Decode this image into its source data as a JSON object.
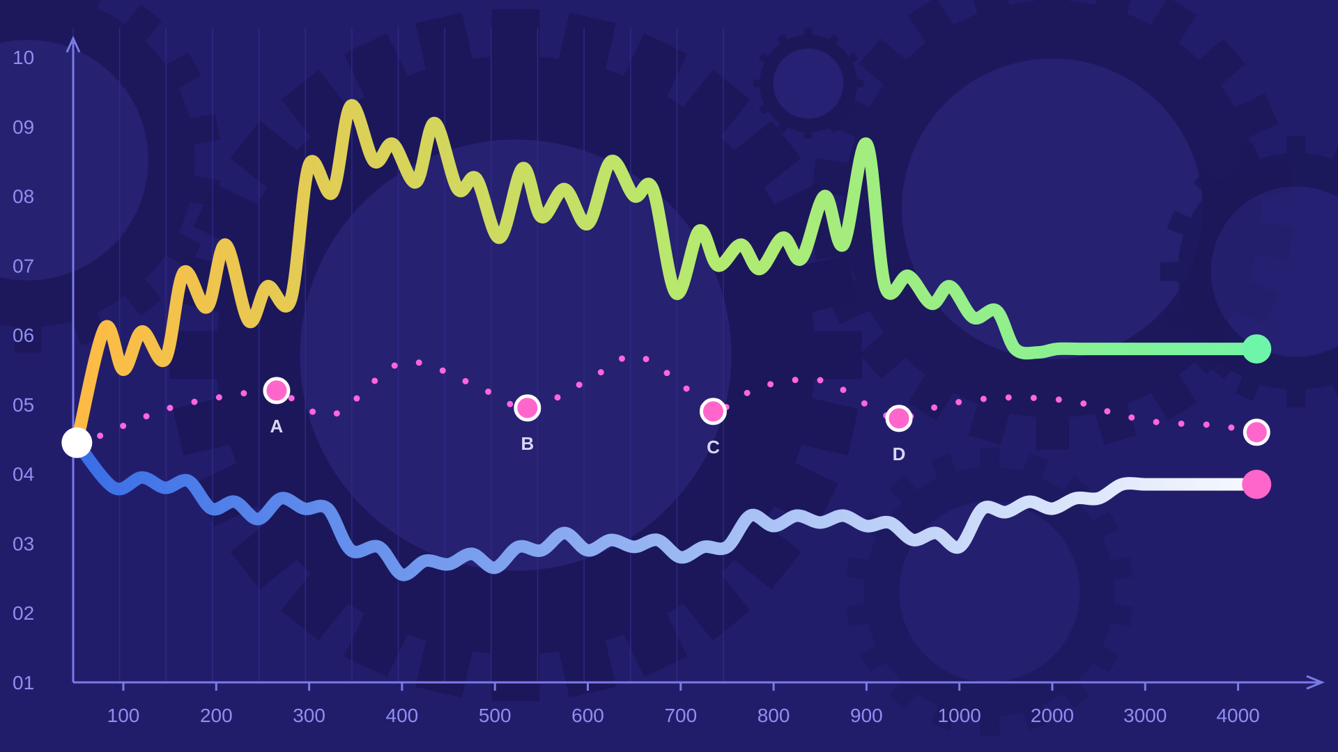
{
  "chart_data": {
    "type": "line",
    "title": "",
    "xlabel": "",
    "ylabel": "",
    "x_tick_labels": [
      "100",
      "200",
      "300",
      "400",
      "500",
      "600",
      "700",
      "800",
      "900",
      "1000",
      "2000",
      "3000",
      "4000"
    ],
    "y_tick_labels": [
      "01",
      "02",
      "03",
      "04",
      "05",
      "06",
      "07",
      "08",
      "09",
      "10"
    ],
    "ylim": [
      1,
      10
    ],
    "grid": "vertical",
    "legend": "none",
    "colors": {
      "background": "#221d6b",
      "gear": "#1b1758",
      "axis": "#7b7be8",
      "tick_label": "#8f8ff0",
      "upper_start": "#fdbb45",
      "upper_mid": "#b5ea6e",
      "upper_end": "#6ef5aa",
      "lower_start": "#3a6fe6",
      "lower_end": "#ffffff",
      "dotted": "#ff66dd",
      "marker_fill": "#ff66cc",
      "marker_label": "#d9d6f5"
    },
    "series": [
      {
        "style": "solid-gradient",
        "x": [
          0.5,
          0.8,
          1.0,
          1.2,
          1.45,
          1.65,
          1.9,
          2.1,
          2.35,
          2.55,
          2.8,
          3.0,
          3.25,
          3.45,
          3.7,
          3.9,
          4.15,
          4.35,
          4.6,
          4.8,
          5.05,
          5.3,
          5.5,
          5.75,
          6.0,
          6.25,
          6.5,
          6.7,
          6.95,
          7.2,
          7.4,
          7.65,
          7.85,
          8.1,
          8.3,
          8.55,
          8.75,
          9.0,
          9.2,
          9.45,
          9.7,
          9.9,
          10.15,
          10.4,
          10.6,
          10.85,
          11.05,
          11.3,
          11.55,
          11.75,
          12.0,
          12.25,
          12.45,
          12.7,
          12.95,
          13.2
        ],
        "values": [
          4.45,
          6.1,
          5.5,
          6.05,
          5.65,
          6.9,
          6.4,
          7.3,
          6.2,
          6.7,
          6.5,
          8.45,
          8.05,
          9.3,
          8.5,
          8.75,
          8.2,
          9.05,
          8.1,
          8.25,
          7.4,
          8.4,
          7.7,
          8.1,
          7.6,
          8.5,
          8.0,
          8.1,
          6.6,
          7.5,
          7.0,
          7.3,
          6.95,
          7.4,
          7.1,
          8.0,
          7.3,
          8.75,
          6.7,
          6.85,
          6.45,
          6.7,
          6.25,
          6.35,
          5.8,
          5.75,
          5.8,
          5.8,
          5.8,
          5.8,
          5.8,
          5.8,
          5.8,
          5.8,
          5.8,
          5.8
        ]
      },
      {
        "style": "solid-gradient",
        "x": [
          0.5,
          0.9,
          1.2,
          1.45,
          1.7,
          1.95,
          2.2,
          2.45,
          2.7,
          2.95,
          3.2,
          3.45,
          3.75,
          4.0,
          4.25,
          4.5,
          4.75,
          5.0,
          5.25,
          5.5,
          5.75,
          6.0,
          6.25,
          6.5,
          6.75,
          7.0,
          7.25,
          7.5,
          7.75,
          8.0,
          8.25,
          8.5,
          8.75,
          9.0,
          9.25,
          9.5,
          9.75,
          10.0,
          10.25,
          10.5,
          10.75,
          11.0,
          11.25,
          11.5,
          11.75,
          12.0,
          12.25,
          12.5,
          12.75,
          13.0,
          13.2
        ],
        "values": [
          4.45,
          3.8,
          3.95,
          3.8,
          3.9,
          3.5,
          3.6,
          3.35,
          3.65,
          3.5,
          3.5,
          2.9,
          2.95,
          2.55,
          2.75,
          2.7,
          2.85,
          2.65,
          2.95,
          2.9,
          3.15,
          2.9,
          3.05,
          2.95,
          3.05,
          2.8,
          2.95,
          2.95,
          3.4,
          3.25,
          3.4,
          3.3,
          3.4,
          3.25,
          3.3,
          3.05,
          3.15,
          2.95,
          3.5,
          3.45,
          3.6,
          3.5,
          3.65,
          3.65,
          3.85,
          3.85,
          3.85,
          3.85,
          3.85,
          3.85,
          3.85
        ]
      },
      {
        "style": "dotted",
        "x": [
          0.75,
          1.5,
          2.25,
          2.65,
          3.25,
          4.0,
          4.75,
          5.35,
          6.0,
          6.5,
          7.0,
          7.35,
          7.85,
          8.5,
          9.0,
          9.35,
          9.85,
          10.5,
          11.2,
          11.6,
          12.1,
          12.75,
          13.2
        ],
        "values": [
          4.55,
          4.95,
          5.15,
          5.2,
          4.85,
          5.6,
          5.3,
          4.95,
          5.35,
          5.7,
          5.3,
          4.9,
          5.25,
          5.35,
          5.0,
          4.8,
          5.0,
          5.1,
          5.05,
          4.9,
          4.75,
          4.7,
          4.6
        ]
      }
    ],
    "markers": [
      {
        "label": "A",
        "x": 2.65,
        "value": 5.2
      },
      {
        "label": "B",
        "x": 5.35,
        "value": 4.95
      },
      {
        "label": "C",
        "x": 7.35,
        "value": 4.9
      },
      {
        "label": "D",
        "x": 9.35,
        "value": 4.8
      }
    ],
    "endpoints": [
      {
        "name": "start",
        "x": 0.5,
        "value": 4.45,
        "fill": "#ffffff"
      },
      {
        "name": "upper-end",
        "x": 13.2,
        "value": 5.8,
        "fill": "#6ef5aa"
      },
      {
        "name": "dotted-end",
        "x": 13.2,
        "value": 4.6,
        "fill": "#ff66cc"
      },
      {
        "name": "lower-end",
        "x": 13.2,
        "value": 3.85,
        "fill": "#ff66cc"
      }
    ]
  }
}
